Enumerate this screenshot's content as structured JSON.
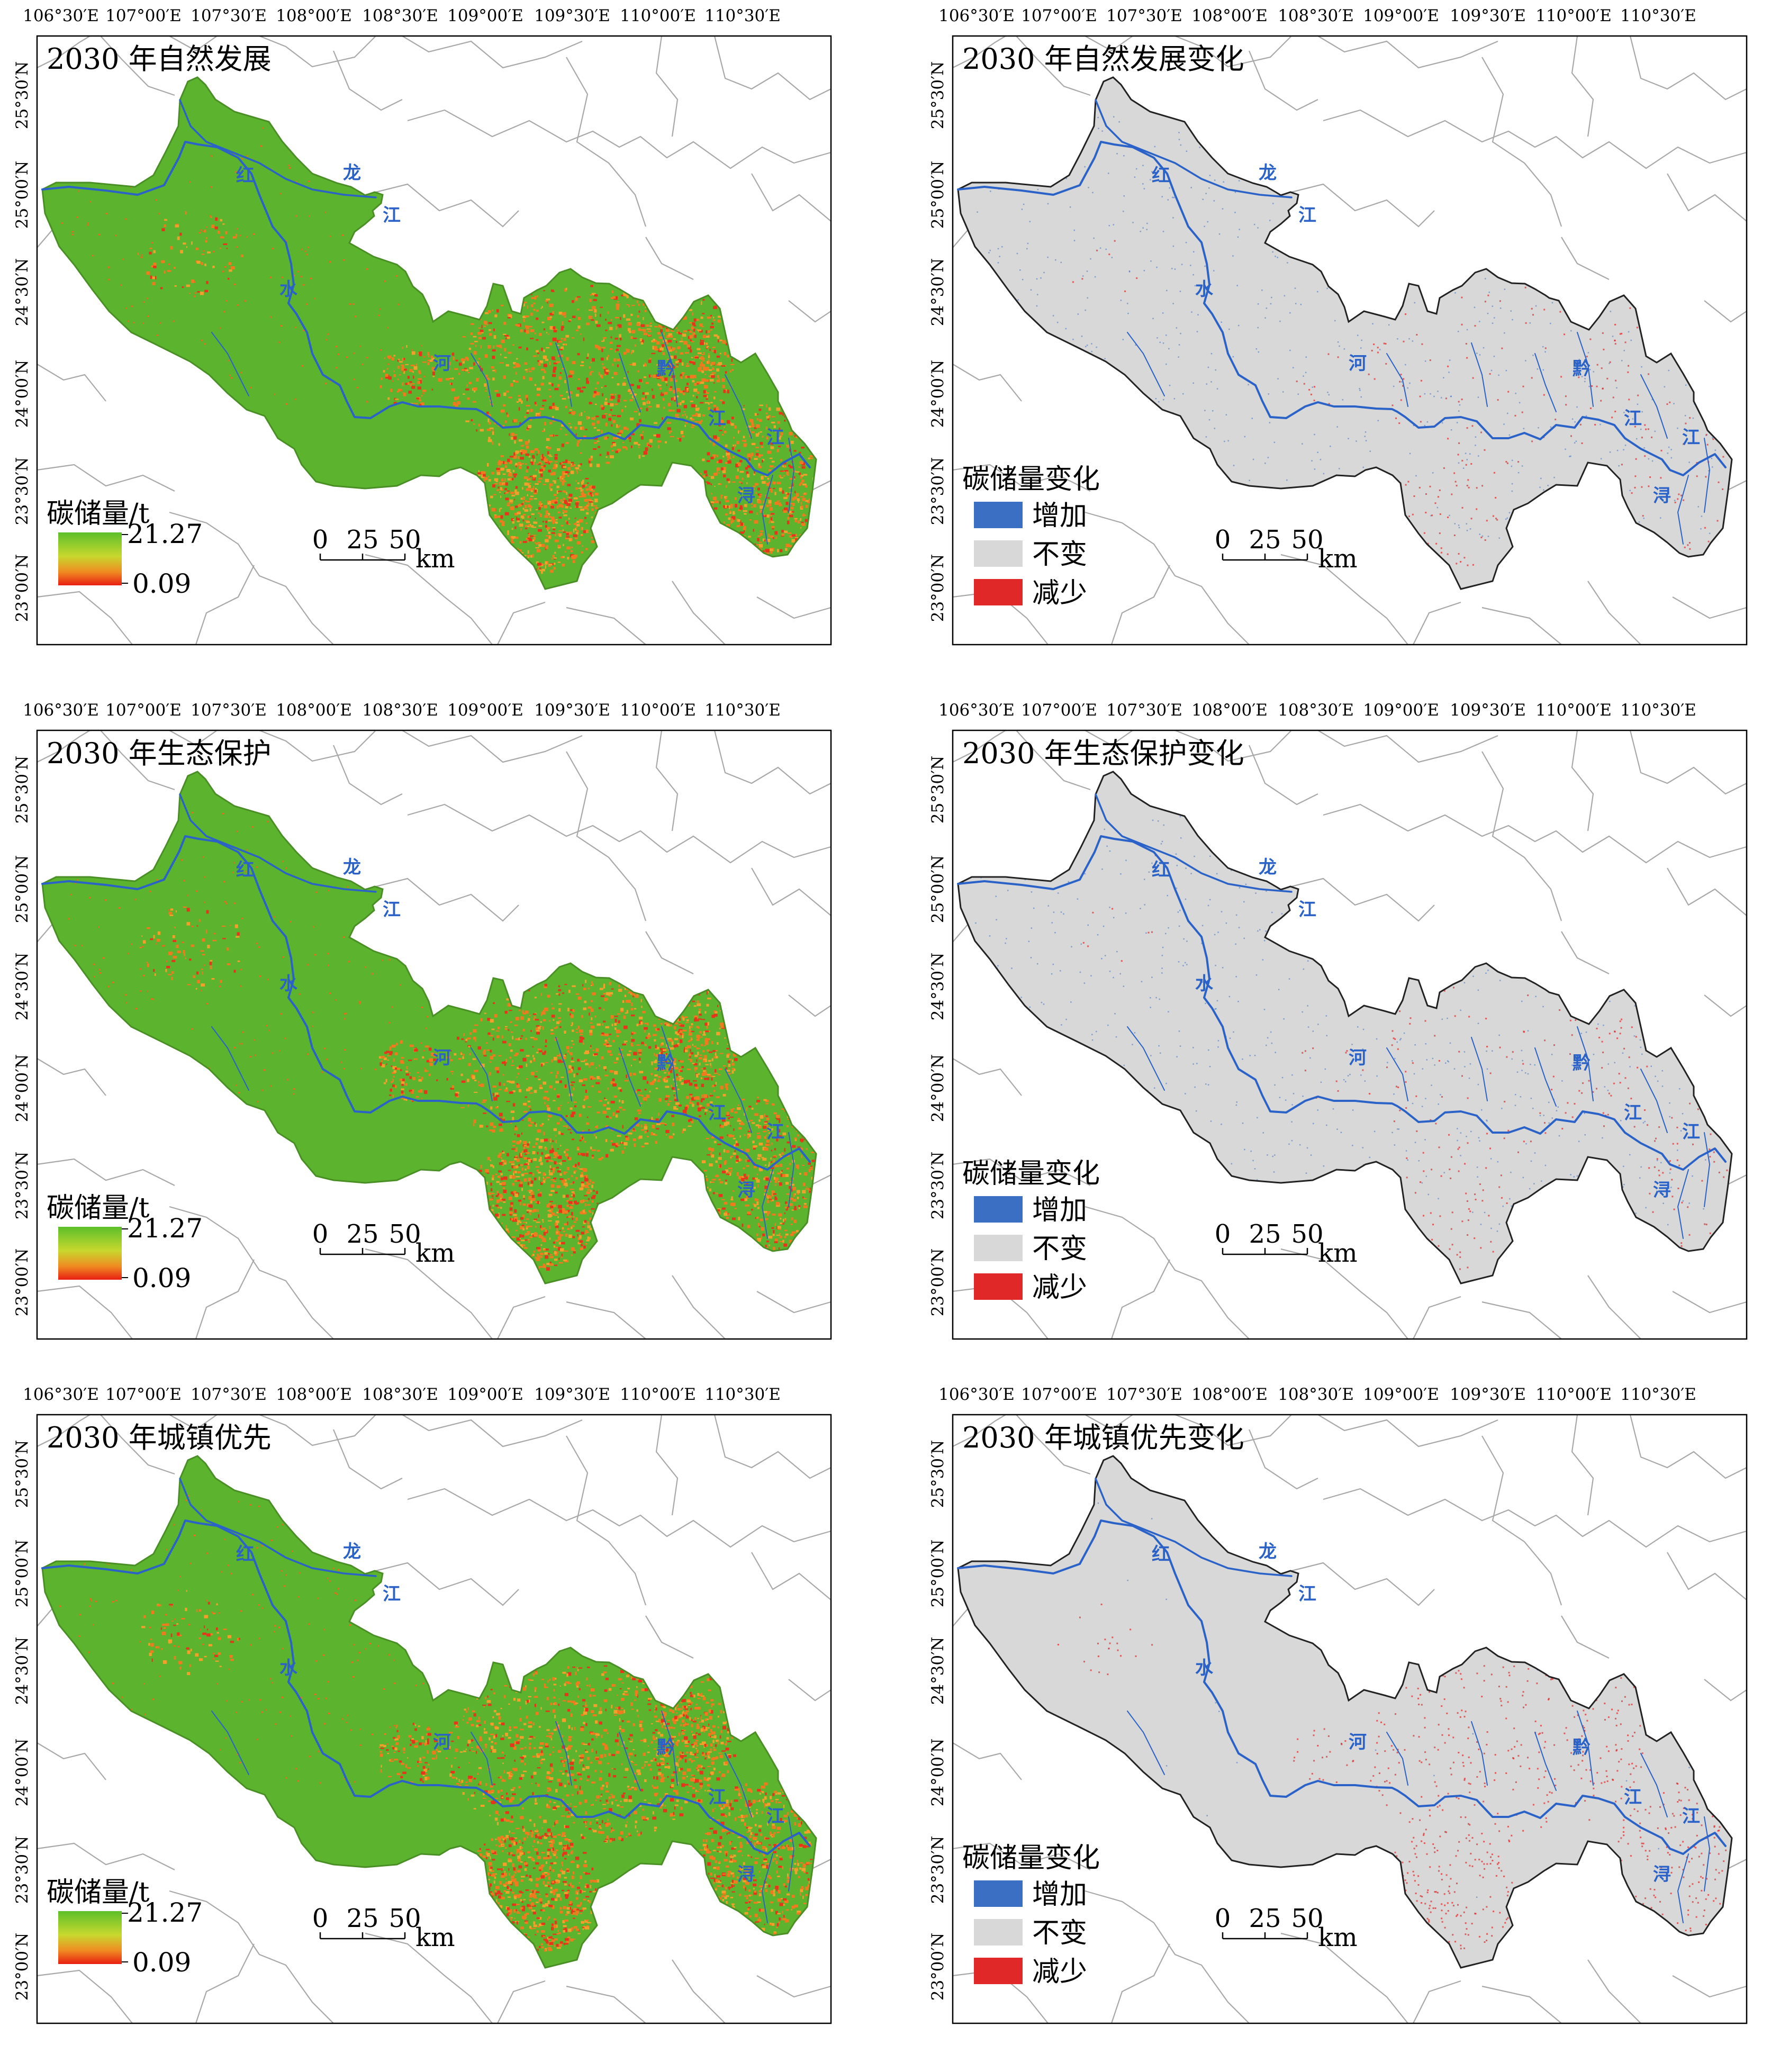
{
  "figure": {
    "lon_labels": [
      "106°30′E",
      "107°00′E",
      "107°30′E",
      "108°00′E",
      "108°30′E",
      "109°00′E",
      "109°30′E",
      "110°00′E",
      "110°30′E"
    ],
    "lat_labels": [
      "25°30′N",
      "25°00′N",
      "24°30′N",
      "24°00′N",
      "23°30′N",
      "23°00′N"
    ],
    "river_labels": [
      "红",
      "水",
      "河",
      "龙",
      "江",
      "黔",
      "江",
      "江",
      "浔"
    ],
    "carbon_legend": {
      "title": "碳储量/t",
      "max": "21.27",
      "min": "0.09"
    },
    "change_legend": {
      "title": "碳储量变化",
      "items": [
        "增加",
        "不变",
        "减少"
      ]
    },
    "change_colors": {
      "increase": "#3a6fc4",
      "unchanged": "#d8d8d8",
      "decrease": "#e02828"
    },
    "scalebar": {
      "ticks": [
        "0",
        "25",
        "50"
      ],
      "unit": "km"
    },
    "panels": [
      {
        "title": "2030 年自然发展",
        "kind": "carbon"
      },
      {
        "title": "2030 年自然发展变化",
        "kind": "change",
        "trend": "mixed"
      },
      {
        "title": "2030 年生态保护",
        "kind": "carbon"
      },
      {
        "title": "2030 年生态保护变化",
        "kind": "change",
        "trend": "mixed"
      },
      {
        "title": "2030 年城镇优先",
        "kind": "carbon"
      },
      {
        "title": "2030 年城镇优先变化",
        "kind": "change",
        "trend": "decrease"
      }
    ]
  }
}
